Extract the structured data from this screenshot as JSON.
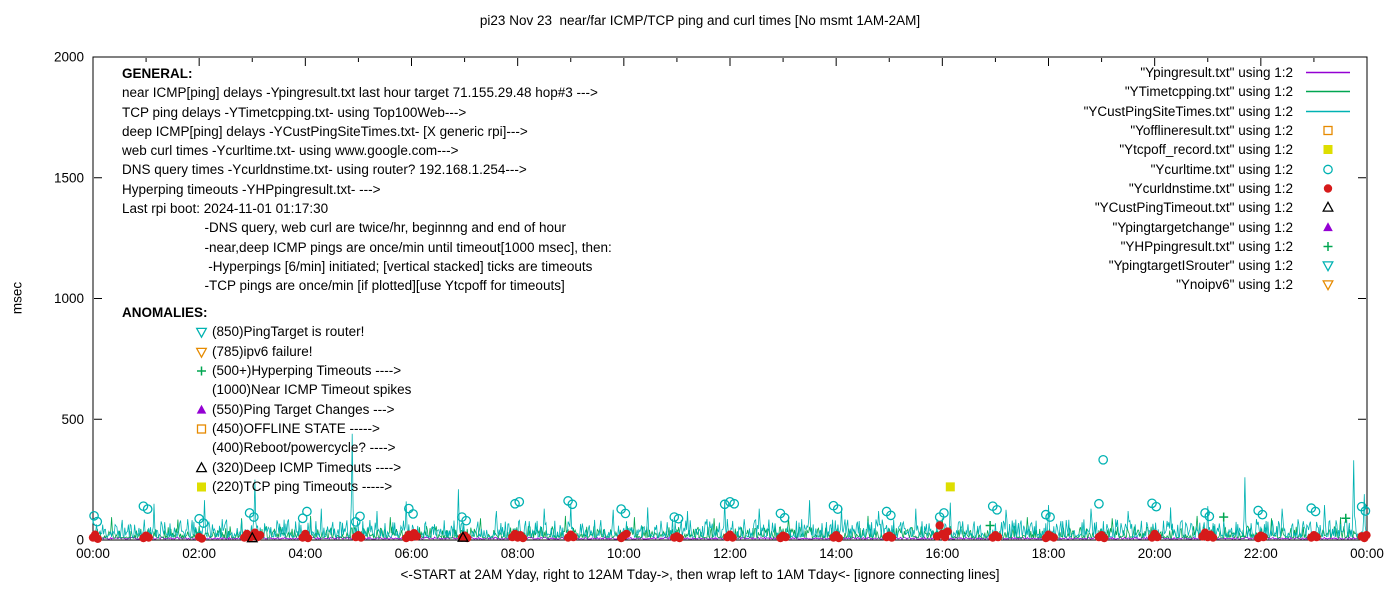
{
  "chart_data": {
    "type": "line+scatter",
    "title": "pi23 Nov 23  near/far ICMP/TCP ping and curl times [No msmt 1AM-2AM]",
    "ylabel": "msec",
    "xlabel": "<-START at 2AM Yday, right to 12AM Tday->, then wrap left to 1AM Tday<- [ignore connecting lines]",
    "ylim": [
      0,
      2000
    ],
    "yticks": [
      0,
      500,
      1000,
      1500,
      2000
    ],
    "xticks": [
      "00:00",
      "02:00",
      "04:00",
      "06:00",
      "08:00",
      "10:00",
      "12:00",
      "14:00",
      "16:00",
      "18:00",
      "20:00",
      "22:00",
      "00:00"
    ],
    "legend": [
      {
        "label": "\"Ypingresult.txt\" using 1:2",
        "marker": "line",
        "color": "#9400d3"
      },
      {
        "label": "\"YTimetcpping.txt\" using 1:2",
        "marker": "line",
        "color": "#00a651"
      },
      {
        "label": "\"YCustPingSiteTimes.txt\" using 1:2",
        "marker": "line",
        "color": "#00b2b2"
      },
      {
        "label": "\"Yofflineresult.txt\" using 1:2",
        "marker": "square-open",
        "color": "#e68a00"
      },
      {
        "label": "\"Ytcpoff_record.txt\" using 1:2",
        "marker": "square-filled",
        "color": "#dede00"
      },
      {
        "label": "\"Ycurltime.txt\" using 1:2",
        "marker": "circle-open",
        "color": "#00b2b2"
      },
      {
        "label": "\"Ycurldnstime.txt\" using 1:2",
        "marker": "circle-filled",
        "color": "#d61a1a"
      },
      {
        "label": "\"YCustPingTimeout.txt\" using 1:2",
        "marker": "tri-up-open",
        "color": "#000000"
      },
      {
        "label": "\"Ypingtargetchange\" using 1:2",
        "marker": "tri-up-filled",
        "color": "#9400d3"
      },
      {
        "label": "\"YHPpingresult.txt\" using 1:2",
        "marker": "plus",
        "color": "#00a651"
      },
      {
        "label": "\"YpingtargetISrouter\" using 1:2",
        "marker": "tri-down-open",
        "color": "#00b2b2"
      },
      {
        "label": "\"Ynoipv6\" using 1:2",
        "marker": "tri-down-open",
        "color": "#e68a00"
      }
    ],
    "lines": [
      {
        "name": "near-icmp-ping",
        "color": "#9400d3",
        "seed": 33,
        "base": 4,
        "amp": 8,
        "pow": 2.0,
        "spikes": []
      },
      {
        "name": "tcp-ping",
        "color": "#00a651",
        "seed": 22,
        "base": 8,
        "amp": 50,
        "pow": 2.5,
        "spikes": [
          [
            0.35,
            95
          ],
          [
            1.6,
            85
          ],
          [
            2.8,
            90
          ],
          [
            4.1,
            100
          ],
          [
            5.6,
            95
          ],
          [
            7.3,
            90
          ],
          [
            8.9,
            100
          ],
          [
            10.2,
            95
          ],
          [
            11.7,
            90
          ],
          [
            13.1,
            95
          ],
          [
            14.6,
            100
          ],
          [
            16.0,
            90
          ],
          [
            17.6,
            95
          ],
          [
            19.2,
            90
          ],
          [
            20.8,
            100
          ],
          [
            22.2,
            90
          ],
          [
            23.5,
            95
          ]
        ]
      },
      {
        "name": "deep-icmp-ping",
        "color": "#00b2b2",
        "seed": 11,
        "base": 12,
        "amp": 75,
        "pow": 2.2,
        "spikes": [
          [
            1.15,
            150
          ],
          [
            2.1,
            165
          ],
          [
            3.05,
            250
          ],
          [
            4.3,
            130
          ],
          [
            4.88,
            440
          ],
          [
            5.35,
            120
          ],
          [
            5.9,
            160
          ],
          [
            6.88,
            210
          ],
          [
            7.6,
            120
          ],
          [
            8.5,
            130
          ],
          [
            9.0,
            150
          ],
          [
            9.8,
            125
          ],
          [
            10.45,
            135
          ],
          [
            11.2,
            120
          ],
          [
            11.9,
            165
          ],
          [
            12.55,
            130
          ],
          [
            13.5,
            165
          ],
          [
            14.1,
            135
          ],
          [
            14.8,
            120
          ],
          [
            15.5,
            130
          ],
          [
            16.15,
            155
          ],
          [
            17.2,
            125
          ],
          [
            18.0,
            145
          ],
          [
            18.8,
            130
          ],
          [
            19.5,
            120
          ],
          [
            20.3,
            135
          ],
          [
            21.0,
            140
          ],
          [
            21.7,
            260
          ],
          [
            22.4,
            130
          ],
          [
            23.2,
            145
          ],
          [
            23.75,
            330
          ],
          [
            23.95,
            190
          ]
        ]
      }
    ],
    "points": {
      "web-curl-times": {
        "marker": "circle-open",
        "color": "#00b2b2",
        "data": [
          [
            0.02,
            100
          ],
          [
            0.08,
            76
          ],
          [
            0.95,
            140
          ],
          [
            1.03,
            128
          ],
          [
            2.0,
            88
          ],
          [
            2.08,
            70
          ],
          [
            2.95,
            112
          ],
          [
            3.03,
            95
          ],
          [
            3.95,
            90
          ],
          [
            4.03,
            118
          ],
          [
            4.95,
            75
          ],
          [
            5.03,
            98
          ],
          [
            5.95,
            130
          ],
          [
            6.03,
            108
          ],
          [
            6.95,
            95
          ],
          [
            7.03,
            80
          ],
          [
            7.95,
            150
          ],
          [
            8.03,
            158
          ],
          [
            8.95,
            162
          ],
          [
            9.03,
            148
          ],
          [
            9.95,
            128
          ],
          [
            10.03,
            110
          ],
          [
            10.95,
            95
          ],
          [
            11.03,
            88
          ],
          [
            11.9,
            148
          ],
          [
            12.0,
            158
          ],
          [
            12.08,
            150
          ],
          [
            12.95,
            110
          ],
          [
            13.03,
            92
          ],
          [
            13.95,
            142
          ],
          [
            14.03,
            128
          ],
          [
            14.95,
            118
          ],
          [
            15.03,
            102
          ],
          [
            15.95,
            95
          ],
          [
            16.03,
            112
          ],
          [
            16.95,
            140
          ],
          [
            17.03,
            125
          ],
          [
            17.95,
            105
          ],
          [
            18.03,
            95
          ],
          [
            18.95,
            150
          ],
          [
            19.03,
            332
          ],
          [
            19.95,
            152
          ],
          [
            20.03,
            138
          ],
          [
            20.95,
            112
          ],
          [
            21.03,
            98
          ],
          [
            21.95,
            122
          ],
          [
            22.03,
            105
          ],
          [
            22.95,
            132
          ],
          [
            23.03,
            118
          ],
          [
            23.9,
            138
          ],
          [
            23.97,
            120
          ]
        ]
      },
      "dns-query-times": {
        "marker": "circle-filled",
        "color": "#d61a1a",
        "data": [
          [
            0.0,
            10
          ],
          [
            0.04,
            22
          ],
          [
            0.09,
            5
          ],
          [
            0.95,
            8
          ],
          [
            1.0,
            18
          ],
          [
            1.05,
            10
          ],
          [
            2.0,
            12
          ],
          [
            2.05,
            6
          ],
          [
            2.85,
            10
          ],
          [
            2.9,
            25
          ],
          [
            2.95,
            8
          ],
          [
            3.0,
            15
          ],
          [
            3.05,
            30
          ],
          [
            3.1,
            12
          ],
          [
            3.15,
            20
          ],
          [
            3.95,
            10
          ],
          [
            4.0,
            25
          ],
          [
            4.05,
            8
          ],
          [
            4.95,
            12
          ],
          [
            5.0,
            20
          ],
          [
            5.05,
            10
          ],
          [
            5.9,
            8
          ],
          [
            5.95,
            22
          ],
          [
            6.0,
            12
          ],
          [
            6.05,
            28
          ],
          [
            6.1,
            15
          ],
          [
            6.95,
            10
          ],
          [
            7.0,
            18
          ],
          [
            7.05,
            8
          ],
          [
            7.9,
            12
          ],
          [
            7.95,
            25
          ],
          [
            8.0,
            10
          ],
          [
            8.05,
            20
          ],
          [
            8.1,
            8
          ],
          [
            8.95,
            10
          ],
          [
            9.0,
            22
          ],
          [
            9.05,
            12
          ],
          [
            9.95,
            8
          ],
          [
            10.0,
            18
          ],
          [
            10.05,
            25
          ],
          [
            10.95,
            10
          ],
          [
            11.0,
            15
          ],
          [
            11.05,
            8
          ],
          [
            11.95,
            12
          ],
          [
            12.0,
            22
          ],
          [
            12.05,
            10
          ],
          [
            12.95,
            8
          ],
          [
            13.0,
            18
          ],
          [
            13.05,
            12
          ],
          [
            13.95,
            10
          ],
          [
            14.0,
            20
          ],
          [
            14.05,
            8
          ],
          [
            14.95,
            12
          ],
          [
            15.0,
            18
          ],
          [
            15.05,
            10
          ],
          [
            15.9,
            15
          ],
          [
            15.95,
            60
          ],
          [
            16.0,
            25
          ],
          [
            16.05,
            12
          ],
          [
            16.1,
            35
          ],
          [
            16.95,
            10
          ],
          [
            17.0,
            20
          ],
          [
            17.05,
            12
          ],
          [
            17.95,
            8
          ],
          [
            18.0,
            22
          ],
          [
            18.05,
            15
          ],
          [
            18.1,
            10
          ],
          [
            18.95,
            12
          ],
          [
            19.0,
            20
          ],
          [
            19.05,
            8
          ],
          [
            19.95,
            10
          ],
          [
            20.0,
            25
          ],
          [
            20.05,
            12
          ],
          [
            20.9,
            15
          ],
          [
            20.95,
            30
          ],
          [
            21.0,
            12
          ],
          [
            21.05,
            22
          ],
          [
            21.1,
            10
          ],
          [
            21.95,
            8
          ],
          [
            22.0,
            18
          ],
          [
            22.05,
            12
          ],
          [
            22.95,
            10
          ],
          [
            23.0,
            20
          ],
          [
            23.05,
            12
          ],
          [
            23.9,
            15
          ],
          [
            23.95,
            8
          ],
          [
            23.99,
            20
          ]
        ]
      },
      "tcp-ping-timeouts": {
        "marker": "square-filled",
        "color": "#dede00",
        "data": [
          [
            16.15,
            220
          ]
        ]
      },
      "deep-icmp-timeouts": {
        "marker": "tri-up-open",
        "color": "#000000",
        "data": [
          [
            3.0,
            8
          ],
          [
            6.97,
            10
          ]
        ]
      },
      "hyperping-timeouts": {
        "marker": "plus",
        "color": "#00a651",
        "data": [
          [
            16.9,
            60
          ],
          [
            21.3,
            95
          ],
          [
            23.6,
            90
          ]
        ]
      },
      "offline-state": {
        "marker": "square-open",
        "color": "#e68a00",
        "data": []
      },
      "ping-target-changes": {
        "marker": "tri-up-filled",
        "color": "#9400d3",
        "data": []
      },
      "ping-target-is-router": {
        "marker": "tri-down-open",
        "color": "#00b2b2",
        "data": []
      },
      "no-ipv6": {
        "marker": "tri-down-open",
        "color": "#e68a00",
        "data": []
      }
    },
    "annotations": {
      "general_title": "GENERAL:",
      "general": [
        "near ICMP[ping] delays -Ypingresult.txt last hour target 71.155.29.48 hop#3 --->",
        "TCP ping delays -YTimetcpping.txt- using Top100Web--->",
        "deep ICMP[ping] delays -YCustPingSiteTimes.txt- [X generic rpi]--->",
        "web curl times -Ycurltime.txt- using www.google.com--->",
        "DNS query times -Ycurldnstime.txt- using router? 192.168.1.254--->",
        "Hyperping timeouts -YHPpingresult.txt- --->",
        "Last rpi boot: 2024-11-01 01:17:30",
        "                      -DNS query, web curl are twice/hr, beginnng and end of hour",
        "                      -near,deep ICMP pings are once/min until timeout[1000 msec], then:",
        "                       -Hyperpings [6/min] initiated; [vertical stacked] ticks are timeouts",
        "                      -TCP pings are once/min [if plotted][use Ytcpoff for timeouts]"
      ],
      "anomalies_title": "ANOMALIES:",
      "anomalies": [
        {
          "marker": "tri-down-open",
          "color": "#00b2b2",
          "text": "(850)PingTarget is router!"
        },
        {
          "marker": "tri-down-open",
          "color": "#e68a00",
          "text": "(785)ipv6 failure!"
        },
        {
          "marker": "plus",
          "color": "#00a651",
          "text": "(500+)Hyperping Timeouts ---->"
        },
        {
          "marker": "none",
          "color": "#000000",
          "text": "(1000)Near ICMP Timeout spikes"
        },
        {
          "marker": "tri-up-filled",
          "color": "#9400d3",
          "text": "(550)Ping Target Changes --->"
        },
        {
          "marker": "square-open",
          "color": "#e68a00",
          "text": "(450)OFFLINE STATE ----->"
        },
        {
          "marker": "none",
          "color": "#000000",
          "text": "(400)Reboot/powercycle? ---->"
        },
        {
          "marker": "tri-up-open",
          "color": "#000000",
          "text": "(320)Deep ICMP Timeouts ---->"
        },
        {
          "marker": "square-filled",
          "color": "#dede00",
          "text": "(220)TCP ping Timeouts ----->"
        }
      ]
    }
  }
}
